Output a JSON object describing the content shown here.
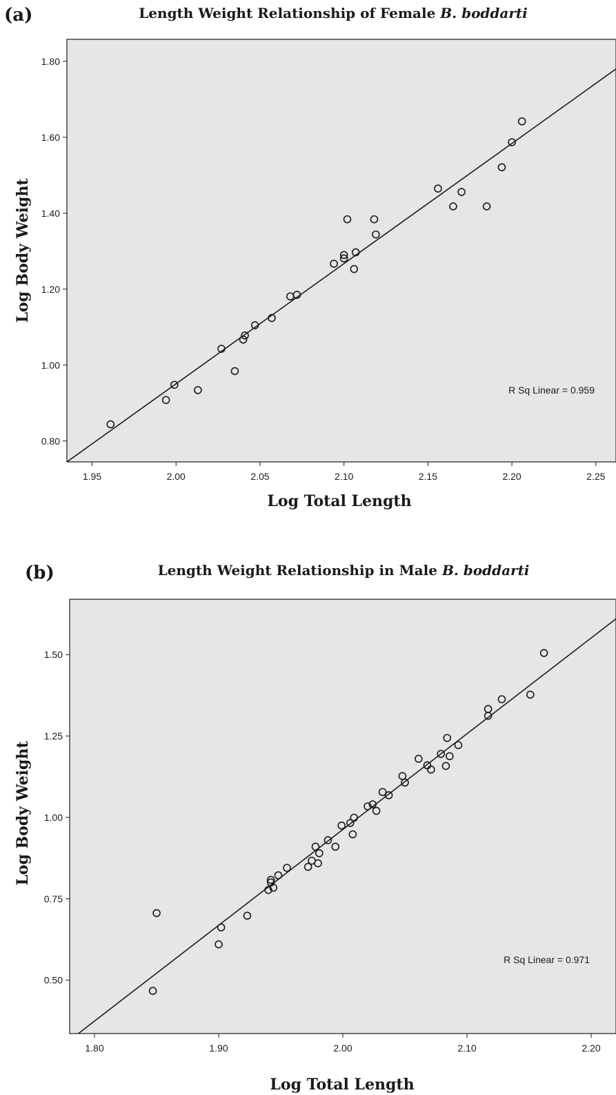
{
  "chart_data": [
    {
      "type": "scatter",
      "panel": "(a)",
      "title_prefix": "Length Weight Relationship of Female ",
      "title_species": "B. boddarti",
      "xlabel": "Log Total Length",
      "ylabel": "Log Body Weight",
      "xlim": [
        1.935,
        2.262
      ],
      "ylim": [
        0.745,
        1.858
      ],
      "xticks": [
        1.95,
        2.0,
        2.05,
        2.1,
        2.15,
        2.2,
        2.25
      ],
      "xtick_labels": [
        "1.95",
        "2.00",
        "2.05",
        "2.10",
        "2.15",
        "2.20",
        "2.25"
      ],
      "yticks": [
        0.8,
        1.0,
        1.2,
        1.4,
        1.6,
        1.8
      ],
      "ytick_labels": [
        "0.80",
        "1.00",
        "1.20",
        "1.40",
        "1.60",
        "1.80"
      ],
      "annotation": "R Sq Linear = 0.959",
      "fit": {
        "x1": 1.935,
        "y1": 0.745,
        "x2": 2.262,
        "y2": 1.78
      },
      "points": [
        [
          1.961,
          0.844
        ],
        [
          1.994,
          0.908
        ],
        [
          1.999,
          0.948
        ],
        [
          2.013,
          0.934
        ],
        [
          2.027,
          1.043
        ],
        [
          2.035,
          0.984
        ],
        [
          2.04,
          1.067
        ],
        [
          2.041,
          1.078
        ],
        [
          2.047,
          1.105
        ],
        [
          2.057,
          1.124
        ],
        [
          2.068,
          1.181
        ],
        [
          2.072,
          1.185
        ],
        [
          2.094,
          1.267
        ],
        [
          2.1,
          1.281
        ],
        [
          2.1,
          1.29
        ],
        [
          2.102,
          1.384
        ],
        [
          2.106,
          1.253
        ],
        [
          2.107,
          1.297
        ],
        [
          2.118,
          1.384
        ],
        [
          2.119,
          1.344
        ],
        [
          2.156,
          1.465
        ],
        [
          2.165,
          1.418
        ],
        [
          2.17,
          1.456
        ],
        [
          2.185,
          1.418
        ],
        [
          2.194,
          1.521
        ],
        [
          2.2,
          1.587
        ],
        [
          2.206,
          1.642
        ]
      ]
    },
    {
      "type": "scatter",
      "panel": "(b)",
      "title_prefix": "Length Weight Relationship in Male ",
      "title_species": "B. boddarti",
      "xlabel": "Log Total Length",
      "ylabel": "Log Body Weight",
      "xlim": [
        1.78,
        2.22
      ],
      "ylim": [
        0.336,
        1.67
      ],
      "xticks": [
        1.8,
        1.9,
        2.0,
        2.1,
        2.2
      ],
      "xtick_labels": [
        "1.80",
        "1.90",
        "2.00",
        "2.10",
        "2.20"
      ],
      "yticks": [
        0.5,
        0.75,
        1.0,
        1.25,
        1.5
      ],
      "ytick_labels": [
        "0.50",
        "0.75",
        "1.00",
        "1.25",
        "1.50"
      ],
      "annotation": "R Sq Linear = 0.971",
      "fit": {
        "x1": 1.787,
        "y1": 0.336,
        "x2": 2.22,
        "y2": 1.61
      },
      "points": [
        [
          1.847,
          0.467
        ],
        [
          1.85,
          0.706
        ],
        [
          1.9,
          0.61
        ],
        [
          1.902,
          0.662
        ],
        [
          1.923,
          0.698
        ],
        [
          1.94,
          0.777
        ],
        [
          1.942,
          0.8
        ],
        [
          1.942,
          0.808
        ],
        [
          1.944,
          0.784
        ],
        [
          1.948,
          0.822
        ],
        [
          1.955,
          0.845
        ],
        [
          1.972,
          0.848
        ],
        [
          1.975,
          0.867
        ],
        [
          1.978,
          0.91
        ],
        [
          1.98,
          0.859
        ],
        [
          1.981,
          0.89
        ],
        [
          1.988,
          0.93
        ],
        [
          1.994,
          0.91
        ],
        [
          1.999,
          0.975
        ],
        [
          2.006,
          0.983
        ],
        [
          2.008,
          0.948
        ],
        [
          2.009,
          0.999
        ],
        [
          2.02,
          1.034
        ],
        [
          2.024,
          1.04
        ],
        [
          2.027,
          1.02
        ],
        [
          2.032,
          1.078
        ],
        [
          2.037,
          1.068
        ],
        [
          2.048,
          1.127
        ],
        [
          2.05,
          1.107
        ],
        [
          2.061,
          1.18
        ],
        [
          2.068,
          1.16
        ],
        [
          2.071,
          1.147
        ],
        [
          2.079,
          1.195
        ],
        [
          2.083,
          1.158
        ],
        [
          2.084,
          1.244
        ],
        [
          2.086,
          1.188
        ],
        [
          2.093,
          1.222
        ],
        [
          2.117,
          1.312
        ],
        [
          2.117,
          1.333
        ],
        [
          2.128,
          1.363
        ],
        [
          2.151,
          1.377
        ],
        [
          2.162,
          1.505
        ]
      ]
    }
  ]
}
